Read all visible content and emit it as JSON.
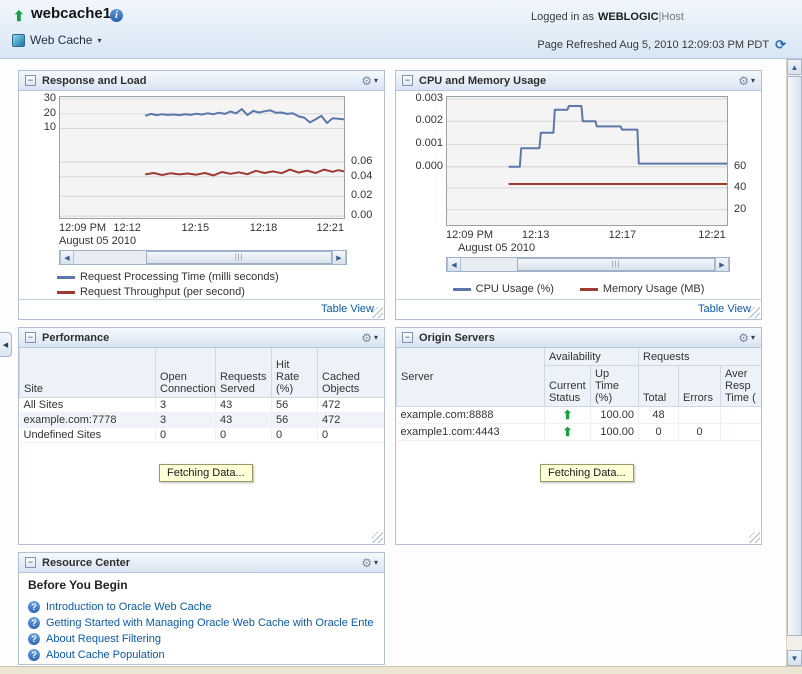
{
  "header": {
    "target_name": "webcache1",
    "menu_label": "Web Cache",
    "logged_in_label": "Logged in as",
    "user": "WEBLOGIC",
    "separator": "|",
    "host_label": "Host",
    "refresh_text": "Page Refreshed Aug 5, 2010 12:09:03 PM PDT"
  },
  "icons": {
    "target_up": "⬆",
    "status_up": "⬆",
    "info": "i",
    "help": "?",
    "gear": "⚙",
    "caret_down": "▾",
    "collapse": "−",
    "refresh": "⟳",
    "scroll_left": "◀",
    "scroll_right": "▶",
    "scroll_up": "▲",
    "scroll_down": "▼",
    "splitter_left": "◀",
    "thumb_grip": "|||"
  },
  "colors": {
    "chart_blue": "#5d77a9",
    "chart_red": "#9e3c34",
    "status_green": "#18a03c",
    "link_blue": "#0c5aa8"
  },
  "panels": {
    "response": {
      "title": "Response and Load",
      "table_view_label": "Table View",
      "chart_data": {
        "type": "line",
        "x_subtitle": "August 05 2010",
        "x_ticks": [
          {
            "label": "12:09 PM",
            "pos": 0.0
          },
          {
            "label": "12:12",
            "pos": 0.24
          },
          {
            "label": "12:15",
            "pos": 0.48
          },
          {
            "label": "12:18",
            "pos": 0.72
          },
          {
            "label": "12:21",
            "pos": 0.955
          }
        ],
        "left_axis": {
          "tick_labels": [
            "30",
            "20",
            "10"
          ],
          "implied_range": [
            0,
            30
          ]
        },
        "right_axis": {
          "tick_labels": [
            "0.06",
            "0.04",
            "0.02",
            "0.00"
          ],
          "implied_range": [
            0,
            0.06
          ]
        },
        "left_ticks": [
          {
            "label": "30",
            "pos": 0.016
          },
          {
            "label": "20",
            "pos": 0.138
          },
          {
            "label": "10",
            "pos": 0.26
          }
        ],
        "right_ticks": [
          {
            "label": "0.06",
            "pos": 0.537
          },
          {
            "label": "0.04",
            "pos": 0.659
          },
          {
            "label": "0.02",
            "pos": 0.821
          },
          {
            "label": "0.00",
            "pos": 0.984
          }
        ],
        "scroll_thumb": [
          0.28,
          1.0
        ],
        "series": [
          {
            "name": "Request Processing Time (milli seconds)",
            "color": "#5d77a9",
            "approx_values_axis": "left, ~17-26 milli seconds",
            "points": [
              [
                0.3,
                0.155
              ],
              [
                0.32,
                0.14
              ],
              [
                0.34,
                0.15
              ],
              [
                0.36,
                0.142
              ],
              [
                0.38,
                0.148
              ],
              [
                0.4,
                0.145
              ],
              [
                0.42,
                0.15
              ],
              [
                0.44,
                0.142
              ],
              [
                0.46,
                0.148
              ],
              [
                0.48,
                0.138
              ],
              [
                0.5,
                0.145
              ],
              [
                0.52,
                0.135
              ],
              [
                0.54,
                0.142
              ],
              [
                0.56,
                0.13
              ],
              [
                0.58,
                0.14
              ],
              [
                0.6,
                0.12
              ],
              [
                0.62,
                0.135
              ],
              [
                0.64,
                0.1
              ],
              [
                0.66,
                0.15
              ],
              [
                0.68,
                0.115
              ],
              [
                0.7,
                0.128
              ],
              [
                0.72,
                0.118
              ],
              [
                0.74,
                0.11
              ],
              [
                0.76,
                0.13
              ],
              [
                0.78,
                0.128
              ],
              [
                0.8,
                0.14
              ],
              [
                0.82,
                0.135
              ],
              [
                0.84,
                0.16
              ],
              [
                0.86,
                0.17
              ],
              [
                0.88,
                0.21
              ],
              [
                0.9,
                0.185
              ],
              [
                0.92,
                0.155
              ],
              [
                0.94,
                0.215
              ],
              [
                0.96,
                0.175
              ],
              [
                0.98,
                0.18
              ],
              [
                1.0,
                0.185
              ]
            ]
          },
          {
            "name": "Request Throughput (per second)",
            "color": "#9e3c34",
            "approx_values_axis": "right, ~0.04-0.05 per second",
            "points": [
              [
                0.3,
                0.64
              ],
              [
                0.33,
                0.628
              ],
              [
                0.36,
                0.645
              ],
              [
                0.39,
                0.63
              ],
              [
                0.42,
                0.64
              ],
              [
                0.45,
                0.632
              ],
              [
                0.48,
                0.642
              ],
              [
                0.51,
                0.628
              ],
              [
                0.54,
                0.648
              ],
              [
                0.57,
                0.62
              ],
              [
                0.6,
                0.635
              ],
              [
                0.63,
                0.622
              ],
              [
                0.66,
                0.638
              ],
              [
                0.69,
                0.61
              ],
              [
                0.72,
                0.628
              ],
              [
                0.75,
                0.615
              ],
              [
                0.78,
                0.63
              ],
              [
                0.81,
                0.6
              ],
              [
                0.84,
                0.625
              ],
              [
                0.87,
                0.608
              ],
              [
                0.9,
                0.628
              ],
              [
                0.93,
                0.6
              ],
              [
                0.96,
                0.618
              ],
              [
                0.98,
                0.605
              ],
              [
                1.0,
                0.615
              ]
            ]
          }
        ]
      }
    },
    "cpu": {
      "title": "CPU and Memory Usage",
      "table_view_label": "Table View",
      "chart_data": {
        "type": "line",
        "x_subtitle": "August 05 2010",
        "x_ticks": [
          {
            "label": "12:09 PM",
            "pos": 0.0
          },
          {
            "label": "12:13",
            "pos": 0.32
          },
          {
            "label": "12:17",
            "pos": 0.63
          },
          {
            "label": "12:21",
            "pos": 0.95
          }
        ],
        "left_axis": {
          "tick_labels": [
            "0.003",
            "0.002",
            "0.001",
            "0.000"
          ],
          "implied_range": [
            0,
            0.003
          ]
        },
        "right_axis": {
          "tick_labels": [
            "60",
            "40",
            "20"
          ],
          "implied_range": [
            0,
            60
          ]
        },
        "left_ticks": [
          {
            "label": "0.003",
            "pos": 0.016
          },
          {
            "label": "0.002",
            "pos": 0.19
          },
          {
            "label": "0.001",
            "pos": 0.37
          },
          {
            "label": "0.000",
            "pos": 0.545
          }
        ],
        "right_ticks": [
          {
            "label": "60",
            "pos": 0.545
          },
          {
            "label": "40",
            "pos": 0.71
          },
          {
            "label": "20",
            "pos": 0.88
          }
        ],
        "scroll_thumb": [
          0.22,
          1.0
        ],
        "series": [
          {
            "name": "CPU Usage (%)",
            "color": "#5d77a9",
            "approx_values_axis": "left, steps from 0.000 up to ~0.0027 then down to ~0.0003",
            "points": [
              [
                0.22,
                0.545
              ],
              [
                0.26,
                0.545
              ],
              [
                0.265,
                0.4
              ],
              [
                0.33,
                0.4
              ],
              [
                0.335,
                0.28
              ],
              [
                0.38,
                0.28
              ],
              [
                0.385,
                0.1
              ],
              [
                0.43,
                0.1
              ],
              [
                0.435,
                0.07
              ],
              [
                0.48,
                0.07
              ],
              [
                0.485,
                0.19
              ],
              [
                0.53,
                0.19
              ],
              [
                0.535,
                0.23
              ],
              [
                0.62,
                0.23
              ],
              [
                0.625,
                0.255
              ],
              [
                0.68,
                0.255
              ],
              [
                0.685,
                0.52
              ],
              [
                1.0,
                0.52
              ]
            ]
          },
          {
            "name": "Memory Usage (MB)",
            "color": "#9e3c34",
            "approx_values_axis": "right, flat ~43 MB",
            "points": [
              [
                0.22,
                0.68
              ],
              [
                1.0,
                0.68
              ]
            ]
          }
        ]
      }
    },
    "performance": {
      "title": "Performance",
      "fetching_label": "Fetching Data...",
      "header": {
        "site": "Site",
        "open_connections": "Open Connections",
        "requests_served": "Requests Served",
        "hit_rate": "Hit Rate (%)",
        "cached_objects": "Cached Objects"
      },
      "rows": [
        {
          "site": "All Sites",
          "open_connections": "3",
          "requests_served": "43",
          "hit_rate": "56",
          "cached_objects": "472"
        },
        {
          "site": "example.com:7778",
          "open_connections": "3",
          "requests_served": "43",
          "hit_rate": "56",
          "cached_objects": "472"
        },
        {
          "site": "Undefined Sites",
          "open_connections": "0",
          "requests_served": "0",
          "hit_rate": "0",
          "cached_objects": "0"
        }
      ]
    },
    "origin": {
      "title": "Origin Servers",
      "fetching_label": "Fetching Data...",
      "header": {
        "server": "Server",
        "availability_group": "Availability",
        "requests_group": "Requests",
        "current_status": "Current Status",
        "up_time": "Up Time (%)",
        "total": "Total",
        "errors": "Errors",
        "avg_resp": "Aver Resp Time ("
      },
      "rows": [
        {
          "server": "example.com:8888",
          "status": "up",
          "up_time": "100.00",
          "total": "48",
          "errors": "",
          "avg_resp": ""
        },
        {
          "server": "example1.com:4443",
          "status": "up",
          "up_time": "100.00",
          "total": "0",
          "errors": "0",
          "avg_resp": ""
        }
      ]
    },
    "resource": {
      "title": "Resource Center",
      "section_heading": "Before You Begin",
      "links": [
        "Introduction to Oracle Web Cache",
        "Getting Started with Managing Oracle Web Cache with Oracle Ente",
        "About Request Filtering",
        "About Cache Population"
      ]
    }
  }
}
